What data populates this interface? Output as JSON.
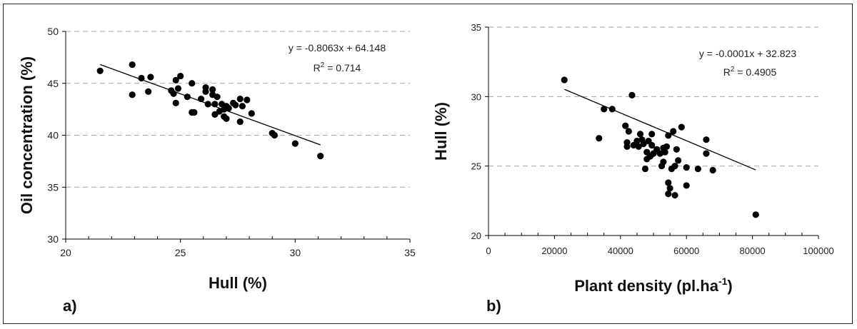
{
  "chart_data": [
    {
      "type": "scatter",
      "panel_label": "a)",
      "xlabel": "Hull (%)",
      "ylabel": "Oil concentration (%)",
      "xlim": [
        20,
        35
      ],
      "ylim": [
        30,
        50
      ],
      "x_ticks": [
        20,
        25,
        30,
        35
      ],
      "y_ticks": [
        30,
        35,
        40,
        45,
        50
      ],
      "x_tick_labels": [
        "20",
        "25",
        "30",
        "35"
      ],
      "y_tick_labels": [
        "30",
        "35",
        "40",
        "45",
        "50"
      ],
      "x_minor_step": 1,
      "grid": "horizontal-dashed",
      "equation": "y = -0.8063x + 64.148",
      "r2_prefix": "R",
      "r2_sup": "2",
      "r2_suffix": " = 0.714",
      "trendline": {
        "slope": -0.8063,
        "intercept": 64.148,
        "x_range": [
          21.5,
          31.1
        ]
      },
      "points": [
        [
          21.5,
          46.2
        ],
        [
          22.9,
          46.8
        ],
        [
          22.9,
          43.9
        ],
        [
          23.3,
          45.5
        ],
        [
          23.7,
          45.6
        ],
        [
          23.6,
          44.2
        ],
        [
          24.6,
          44.3
        ],
        [
          24.7,
          44.0
        ],
        [
          24.8,
          45.3
        ],
        [
          24.8,
          43.1
        ],
        [
          24.9,
          44.5
        ],
        [
          25.0,
          45.7
        ],
        [
          25.3,
          43.7
        ],
        [
          25.5,
          42.2
        ],
        [
          25.6,
          42.2
        ],
        [
          25.5,
          45.0
        ],
        [
          25.9,
          43.5
        ],
        [
          26.1,
          44.6
        ],
        [
          26.1,
          44.2
        ],
        [
          26.2,
          43.0
        ],
        [
          26.4,
          44.4
        ],
        [
          26.4,
          43.9
        ],
        [
          26.5,
          43.0
        ],
        [
          26.6,
          43.7
        ],
        [
          26.5,
          42.0
        ],
        [
          26.7,
          42.3
        ],
        [
          26.8,
          43.0
        ],
        [
          26.9,
          42.5
        ],
        [
          26.9,
          41.8
        ],
        [
          27.0,
          42.8
        ],
        [
          27.0,
          41.6
        ],
        [
          27.1,
          42.6
        ],
        [
          27.3,
          43.1
        ],
        [
          27.4,
          42.9
        ],
        [
          27.6,
          43.5
        ],
        [
          27.7,
          42.8
        ],
        [
          27.6,
          41.3
        ],
        [
          27.9,
          43.4
        ],
        [
          28.1,
          42.1
        ],
        [
          29.0,
          40.2
        ],
        [
          29.1,
          40.0
        ],
        [
          30.0,
          39.2
        ],
        [
          31.1,
          38.0
        ]
      ]
    },
    {
      "type": "scatter",
      "panel_label": "b)",
      "xlabel": "Plant density (pl.ha",
      "xlabel_sup": "-1",
      "xlabel_suffix": ")",
      "ylabel": "Hull (%)",
      "xlim": [
        0,
        100000
      ],
      "ylim": [
        20,
        35
      ],
      "x_ticks": [
        0,
        20000,
        40000,
        60000,
        80000,
        100000
      ],
      "y_ticks": [
        20,
        25,
        30,
        35
      ],
      "x_tick_labels": [
        "0",
        "20000",
        "40000",
        "60000",
        "80000",
        "100000"
      ],
      "y_tick_labels": [
        "20",
        "25",
        "30",
        "35"
      ],
      "x_minor_step": 5000,
      "grid": "horizontal-dashed",
      "equation": "y = -0.0001x + 32.823",
      "r2_prefix": "R",
      "r2_sup": "2",
      "r2_suffix": " = 0.4905",
      "trendline": {
        "slope": -0.0001,
        "intercept": 32.823,
        "x_range": [
          23000,
          81000
        ]
      },
      "points": [
        [
          23000,
          31.2
        ],
        [
          33500,
          27.0
        ],
        [
          35000,
          29.1
        ],
        [
          37500,
          29.1
        ],
        [
          41500,
          27.9
        ],
        [
          42000,
          26.7
        ],
        [
          42000,
          26.4
        ],
        [
          42500,
          27.5
        ],
        [
          43500,
          30.1
        ],
        [
          44000,
          26.5
        ],
        [
          45000,
          26.8
        ],
        [
          45500,
          26.4
        ],
        [
          46000,
          27.3
        ],
        [
          46500,
          26.9
        ],
        [
          47000,
          26.6
        ],
        [
          47500,
          24.8
        ],
        [
          48000,
          26.0
        ],
        [
          48000,
          25.5
        ],
        [
          48500,
          26.8
        ],
        [
          49000,
          25.7
        ],
        [
          49500,
          26.5
        ],
        [
          49500,
          27.3
        ],
        [
          50000,
          25.9
        ],
        [
          51000,
          26.2
        ],
        [
          52000,
          25.9
        ],
        [
          52500,
          25.0
        ],
        [
          53000,
          26.3
        ],
        [
          53000,
          25.3
        ],
        [
          53500,
          26.0
        ],
        [
          54000,
          26.4
        ],
        [
          54500,
          27.2
        ],
        [
          54500,
          23.8
        ],
        [
          55000,
          23.4
        ],
        [
          54500,
          23.0
        ],
        [
          55500,
          24.8
        ],
        [
          56000,
          27.5
        ],
        [
          56500,
          25.0
        ],
        [
          56500,
          22.9
        ],
        [
          57000,
          26.2
        ],
        [
          57500,
          25.4
        ],
        [
          58500,
          27.8
        ],
        [
          60000,
          24.9
        ],
        [
          60000,
          23.6
        ],
        [
          63500,
          24.8
        ],
        [
          66000,
          26.9
        ],
        [
          66000,
          25.9
        ],
        [
          68000,
          24.7
        ],
        [
          81000,
          21.5
        ]
      ]
    }
  ],
  "colors": {
    "marker": "#000000",
    "trendline": "#000000",
    "grid": "#a6a6a6",
    "axis": "#000000"
  }
}
